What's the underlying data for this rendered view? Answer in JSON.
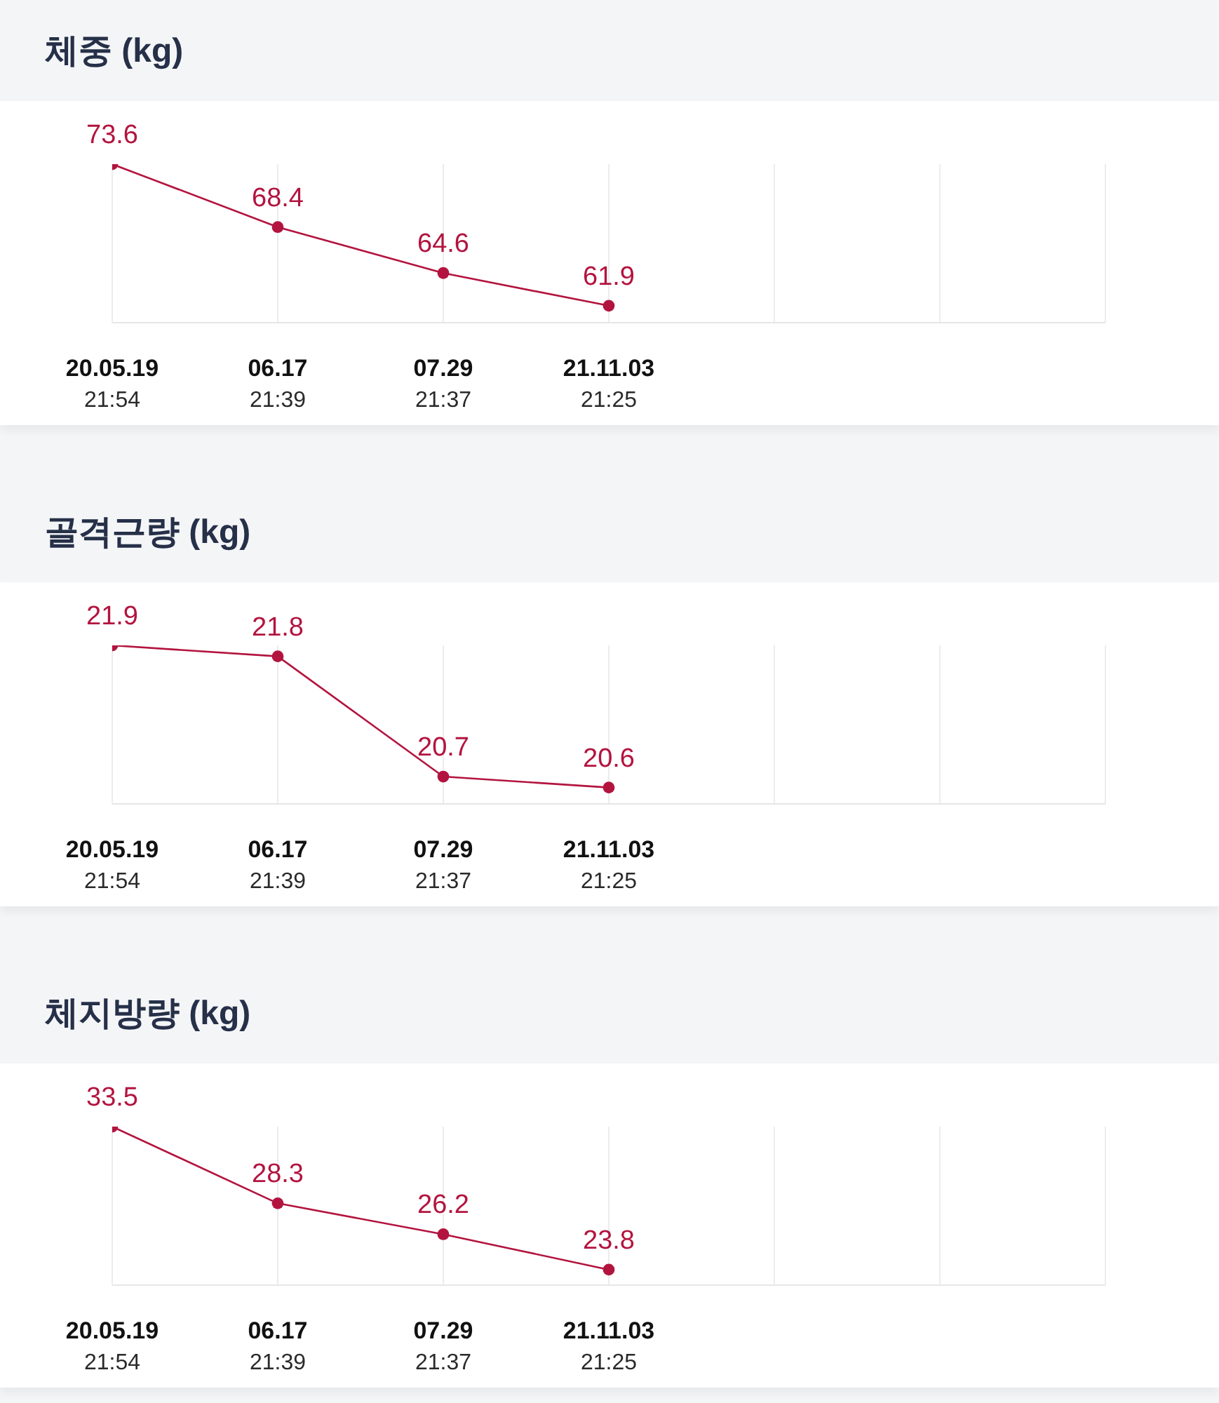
{
  "chart_data": [
    {
      "type": "line",
      "title": "체중 (kg)",
      "categories": [
        "20.05.19\n21:54",
        "06.17\n21:39",
        "07.29\n21:37",
        "21.11.03\n21:25",
        null,
        null,
        null
      ],
      "values": [
        73.6,
        68.4,
        64.6,
        61.9,
        null,
        null,
        null
      ],
      "color": "#b3143f",
      "ylim": [
        60.5,
        73.6
      ],
      "grid": "x",
      "marker": "circle",
      "line_style": "solid",
      "data_labels": true,
      "tick_labels": "x"
    },
    {
      "type": "line",
      "title": "골격근량 (kg)",
      "categories": [
        "20.05.19\n21:54",
        "06.17\n21:39",
        "07.29\n21:37",
        "21.11.03\n21:25",
        null,
        null,
        null
      ],
      "values": [
        21.9,
        21.8,
        20.7,
        20.6,
        null,
        null,
        null
      ],
      "color": "#b3143f",
      "ylim": [
        20.45,
        21.9
      ],
      "grid": "x",
      "marker": "circle",
      "line_style": "solid",
      "data_labels": true,
      "tick_labels": "x"
    },
    {
      "type": "line",
      "title": "체지방량 (kg)",
      "categories": [
        "20.05.19\n21:54",
        "06.17\n21:39",
        "07.29\n21:37",
        "21.11.03\n21:25",
        null,
        null,
        null
      ],
      "values": [
        33.5,
        28.3,
        26.2,
        23.8,
        null,
        null,
        null
      ],
      "color": "#b3143f",
      "ylim": [
        22.75,
        33.5
      ],
      "grid": "x",
      "marker": "circle",
      "line_style": "solid",
      "data_labels": true,
      "tick_labels": "x"
    }
  ]
}
